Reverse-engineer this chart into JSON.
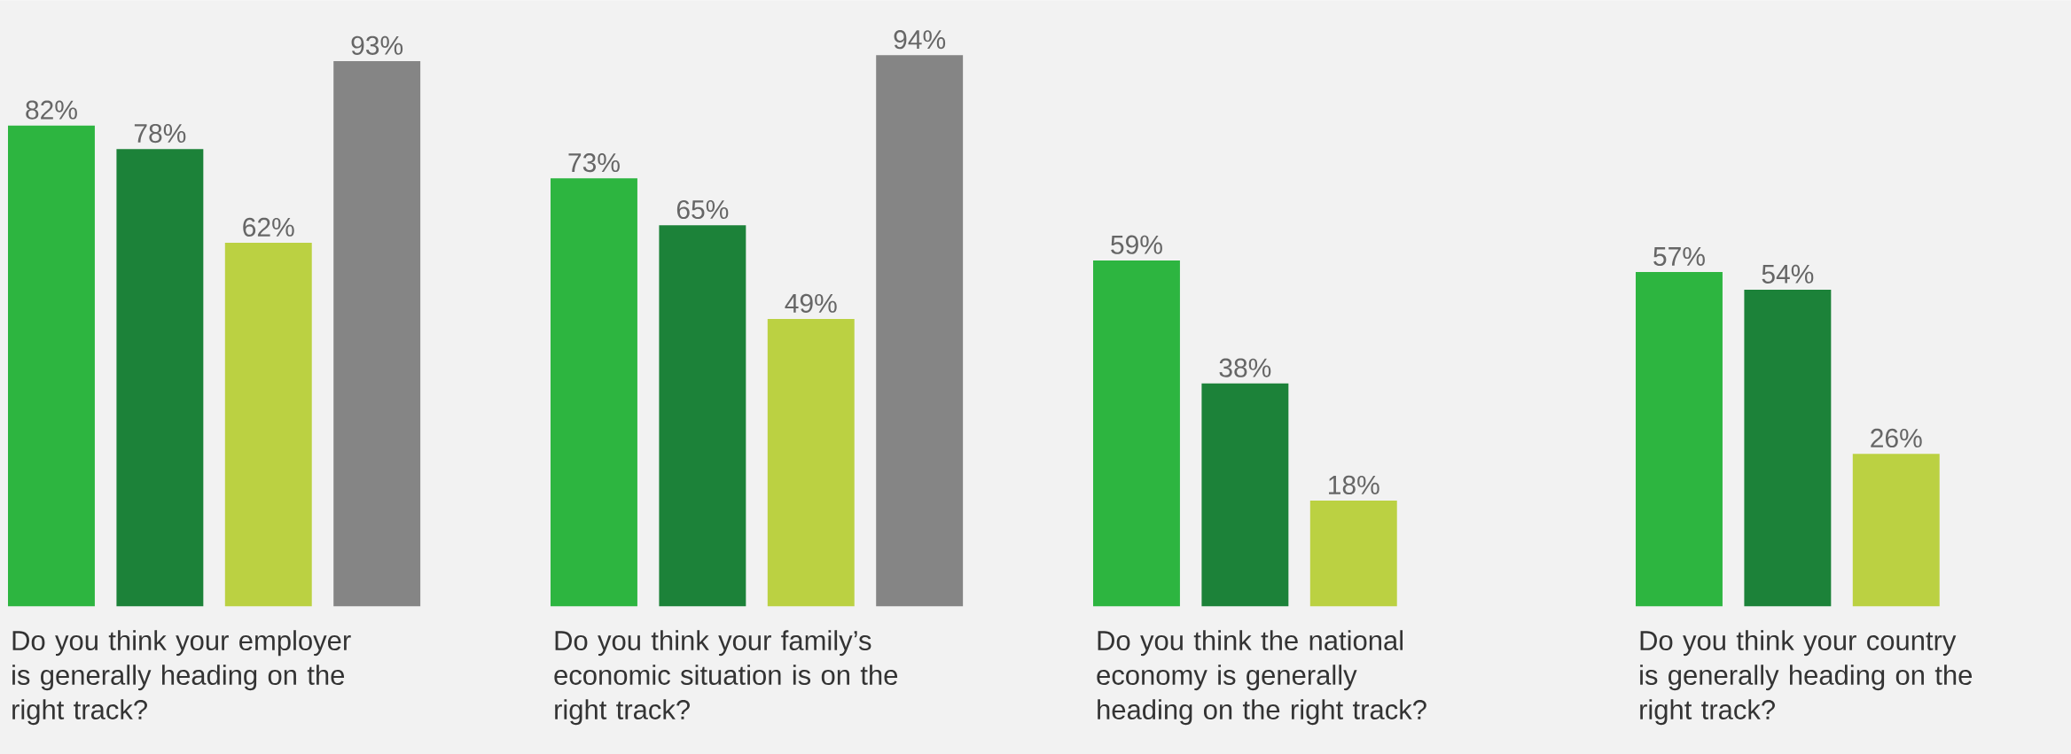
{
  "chart_data": {
    "type": "bar",
    "categories": [
      "Do you think your employer is generally heading on the right track?",
      "Do you think your family’s economic situation is on the right track?",
      "Do you think the national economy is generally heading on the right track?",
      "Do you think your country is generally heading on the right track?"
    ],
    "series": [
      {
        "color": "#2db540",
        "values": [
          82,
          73,
          59,
          57
        ],
        "value_labels": [
          "82%",
          "73%",
          "59%",
          "57%"
        ]
      },
      {
        "color": "#1c8239",
        "values": [
          78,
          65,
          38,
          54
        ],
        "value_labels": [
          "78%",
          "65%",
          "38%",
          "54%"
        ]
      },
      {
        "color": "#bbd142",
        "values": [
          62,
          49,
          18,
          26
        ],
        "value_labels": [
          "62%",
          "49%",
          "18%",
          "26%"
        ]
      },
      {
        "color": "#858585",
        "values": [
          93,
          94,
          null,
          null
        ],
        "value_labels": [
          "93%",
          "94%",
          null,
          null
        ]
      }
    ]
  }
}
